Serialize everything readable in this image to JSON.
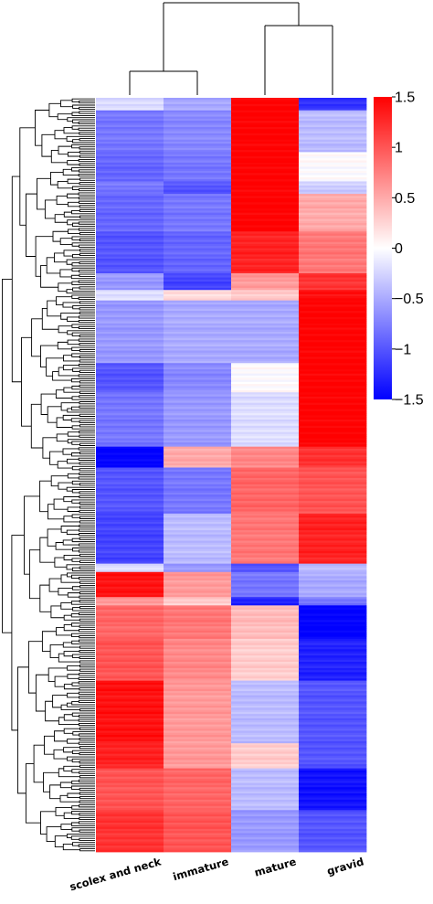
{
  "chart_data": {
    "type": "heatmap",
    "title": "",
    "xlabel": "",
    "ylabel": "",
    "columns": [
      "scolex and neck",
      "immature",
      "mature",
      "gravid"
    ],
    "row_dendrogram": true,
    "column_dendrogram": true,
    "column_dendrogram_groups": [
      [
        "scolex and neck",
        "immature"
      ],
      [
        "mature",
        "gravid"
      ]
    ],
    "color_scale": {
      "min": -1.5,
      "max": 1.5,
      "low_color": "#0000ff",
      "mid_color": "#ffffff",
      "high_color": "#ff0000",
      "ticks": [
        1.5,
        1,
        0.5,
        0,
        -0.5,
        -1,
        -1.5
      ],
      "tick_labels": [
        "1.5",
        "1",
        "0.5",
        "0",
        "−0.5",
        "−1",
        "−1.5"
      ]
    },
    "row_blocks": [
      {
        "rows": 6,
        "values": [
          -0.2,
          -0.5,
          1.5,
          -1.2
        ]
      },
      {
        "rows": 20,
        "values": [
          -0.8,
          -0.7,
          1.5,
          -0.4
        ]
      },
      {
        "rows": 14,
        "values": [
          -0.9,
          -0.8,
          1.5,
          0.0
        ]
      },
      {
        "rows": 6,
        "values": [
          -0.8,
          -1.0,
          1.5,
          -0.3
        ]
      },
      {
        "rows": 18,
        "values": [
          -0.9,
          -0.8,
          1.5,
          0.5
        ]
      },
      {
        "rows": 20,
        "values": [
          -1.0,
          -0.9,
          1.3,
          0.8
        ]
      },
      {
        "rows": 8,
        "values": [
          -0.6,
          -1.1,
          0.6,
          1.2
        ]
      },
      {
        "rows": 5,
        "values": [
          -0.2,
          0.2,
          0.3,
          1.4
        ]
      },
      {
        "rows": 30,
        "values": [
          -0.6,
          -0.5,
          -0.5,
          1.5
        ]
      },
      {
        "rows": 14,
        "values": [
          -1.0,
          -0.7,
          0.0,
          1.5
        ]
      },
      {
        "rows": 26,
        "values": [
          -0.8,
          -0.6,
          -0.2,
          1.5
        ]
      },
      {
        "rows": 10,
        "values": [
          -1.5,
          0.5,
          0.7,
          1.2
        ]
      },
      {
        "rows": 22,
        "values": [
          -1.0,
          -0.8,
          0.9,
          1.0
        ]
      },
      {
        "rows": 24,
        "values": [
          -1.1,
          -0.4,
          0.8,
          1.3
        ]
      },
      {
        "rows": 4,
        "values": [
          -0.2,
          -0.6,
          -1.0,
          -0.4
        ]
      },
      {
        "rows": 12,
        "values": [
          1.4,
          0.6,
          -0.8,
          -0.5
        ]
      },
      {
        "rows": 4,
        "values": [
          0.6,
          0.3,
          -1.3,
          -0.8
        ]
      },
      {
        "rows": 16,
        "values": [
          0.9,
          0.8,
          0.4,
          -1.5
        ]
      },
      {
        "rows": 20,
        "values": [
          1.0,
          0.7,
          0.3,
          -1.3
        ]
      },
      {
        "rows": 30,
        "values": [
          1.4,
          0.6,
          -0.4,
          -1.0
        ]
      },
      {
        "rows": 12,
        "values": [
          1.3,
          0.6,
          0.3,
          -1.0
        ]
      },
      {
        "rows": 20,
        "values": [
          1.0,
          0.9,
          -0.4,
          -1.4
        ]
      },
      {
        "rows": 20,
        "values": [
          1.2,
          1.0,
          -0.6,
          -1.0
        ]
      }
    ]
  }
}
